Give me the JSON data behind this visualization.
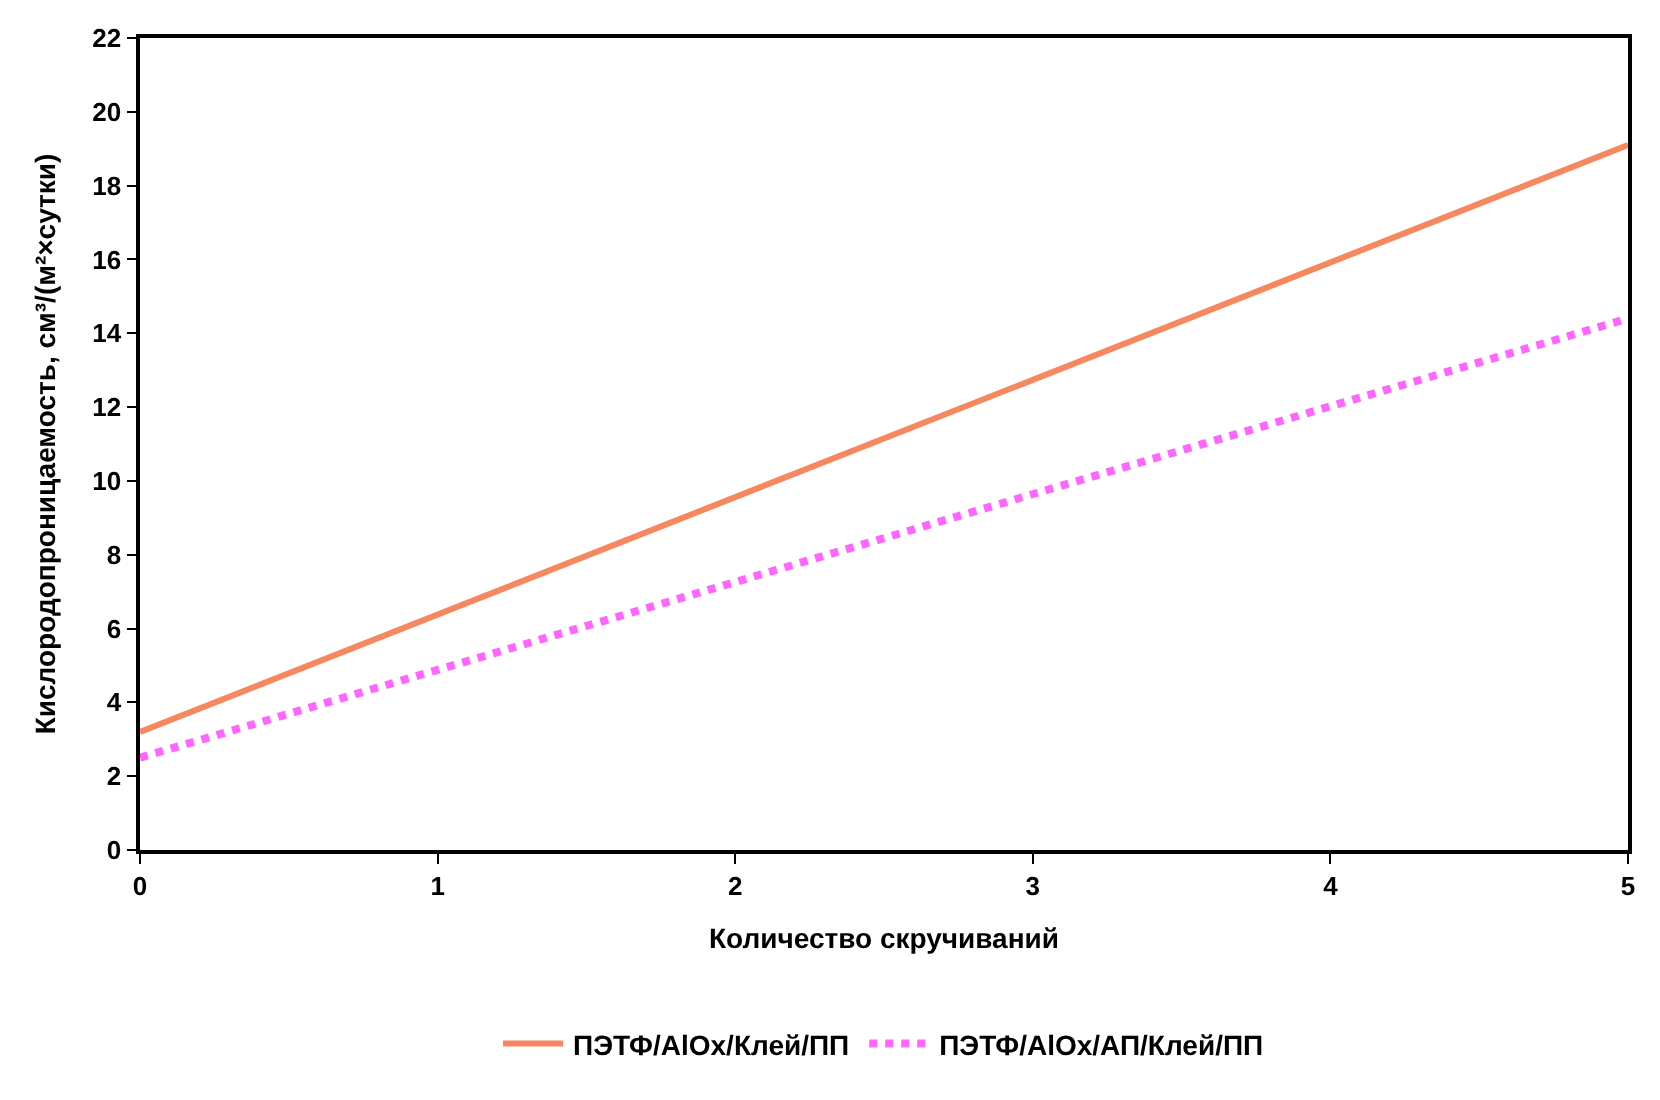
{
  "chart_data": {
    "type": "line",
    "xlabel": "Количество скручиваний",
    "ylabel": "Кислородопроницаемость, см³/(м²×сутки)",
    "x": [
      0,
      5
    ],
    "series": [
      {
        "name": "ПЭТФ/AlOx/Клей/ПП",
        "color": "#f7875e",
        "values": [
          3.2,
          19.1
        ],
        "line_style": "solid"
      },
      {
        "name": "ПЭТФ/AlOx/АП/Клей/ПП",
        "color": "#ff66ff",
        "values": [
          2.5,
          14.4
        ],
        "line_style": "dotted"
      }
    ],
    "xlim": [
      0,
      5
    ],
    "xticks": [
      0,
      1,
      2,
      3,
      4,
      5
    ],
    "ylim": [
      0,
      22
    ],
    "yticks": [
      0,
      2,
      4,
      6,
      8,
      10,
      12,
      14,
      16,
      18,
      20,
      22
    ],
    "legend": "bottom",
    "marker": "none"
  }
}
